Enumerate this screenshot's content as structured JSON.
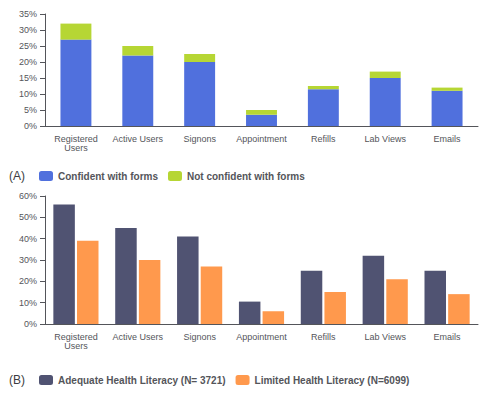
{
  "chart_data": [
    {
      "type": "bar",
      "title": "(A)",
      "categories": [
        "Registered\nUsers",
        "Active Users",
        "Signons",
        "Appointment",
        "Refills",
        "Lab Views",
        "Emails"
      ],
      "series": [
        {
          "name": "Confident with forms",
          "values": [
            27,
            22,
            20,
            3.5,
            11.5,
            15,
            11
          ]
        },
        {
          "name": "Not confident with forms",
          "values": [
            5,
            3,
            2.5,
            1.5,
            1,
            2,
            1
          ]
        }
      ],
      "stacked": true,
      "ylim": [
        0,
        35
      ],
      "yticks": [
        {
          "value": 0,
          "label": "0%"
        },
        {
          "value": 5,
          "label": "5%"
        },
        {
          "value": 10,
          "label": "10%"
        },
        {
          "value": 15,
          "label": "15%"
        },
        {
          "value": 20,
          "label": "20%"
        },
        {
          "value": 25,
          "label": "25%"
        },
        {
          "value": 30,
          "label": "30%"
        },
        {
          "value": 35,
          "label": "35%"
        }
      ],
      "grid": false,
      "legend": "bottom"
    },
    {
      "type": "bar",
      "title": "(B)",
      "categories": [
        "Registered\nUsers",
        "Active Users",
        "Signons",
        "Appointment",
        "Refills",
        "Lab Views",
        "Emails"
      ],
      "series": [
        {
          "name": "Adequate Health Literacy (N= 3721)",
          "values": [
            56,
            45,
            41,
            10.5,
            25,
            32,
            25
          ]
        },
        {
          "name": "Limited Health Literacy (N=6099)",
          "values": [
            39,
            30,
            27,
            6,
            15,
            21,
            14
          ]
        }
      ],
      "stacked": false,
      "ylim": [
        0,
        60
      ],
      "yticks": [
        {
          "value": 0,
          "label": "0%"
        },
        {
          "value": 10,
          "label": "10%"
        },
        {
          "value": 20,
          "label": "20%"
        },
        {
          "value": 30,
          "label": "30%"
        },
        {
          "value": 40,
          "label": "40%"
        },
        {
          "value": 50,
          "label": "50%"
        },
        {
          "value": 60,
          "label": "60%"
        }
      ],
      "grid": false,
      "legend": "bottom"
    }
  ]
}
